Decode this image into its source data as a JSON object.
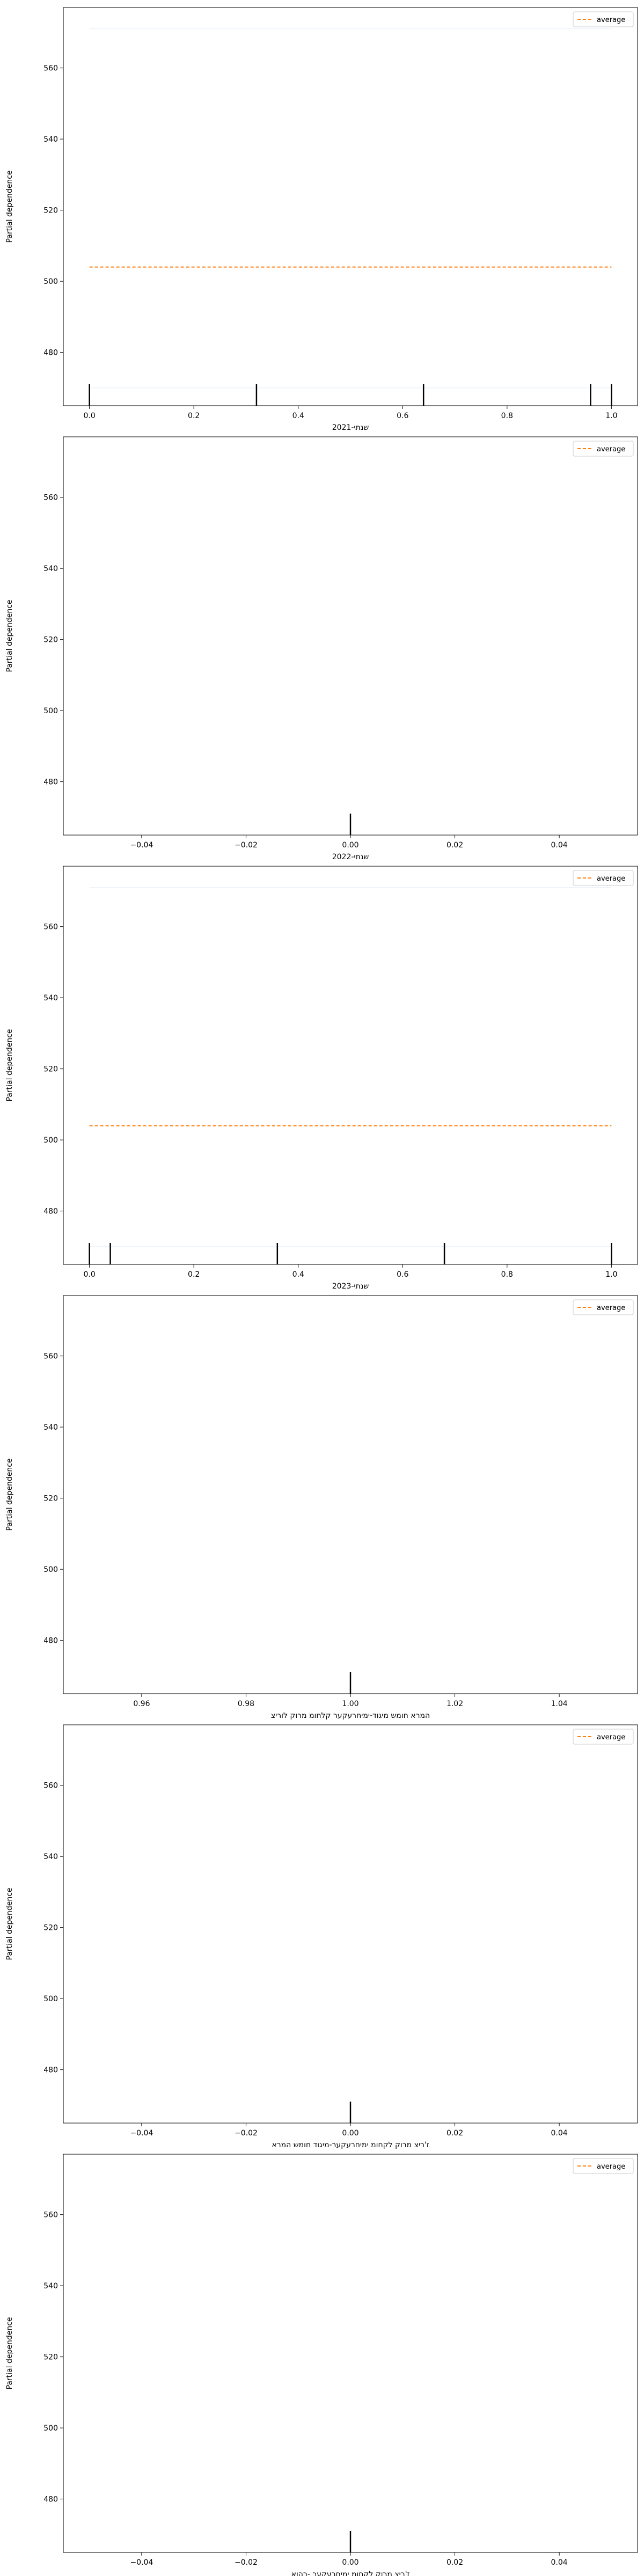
{
  "colors": {
    "average": "#ff7f0e",
    "individual": "#1f77b4",
    "rug": "#000000",
    "axes": "#000000"
  },
  "chart_data": [
    {
      "type": "line",
      "xlabel": "שנתי-2021",
      "ylabel": "Partial dependence",
      "xlim": [
        -0.05,
        1.05
      ],
      "ylim": [
        465,
        577
      ],
      "xticks": [
        0.0,
        0.2,
        0.4,
        0.6,
        0.8,
        1.0
      ],
      "xtick_labels": [
        "0.0",
        "0.2",
        "0.4",
        "0.6",
        "0.8",
        "1.0"
      ],
      "yticks": [
        480,
        500,
        520,
        540,
        560
      ],
      "ytick_labels": [
        "480",
        "500",
        "520",
        "540",
        "560"
      ],
      "legend": {
        "position": "top-right",
        "entries": [
          "average"
        ]
      },
      "series": [
        {
          "name": "average",
          "x": [
            0.0,
            1.0
          ],
          "y": [
            504,
            504
          ]
        }
      ],
      "individual_lines": [
        {
          "x": [
            0.0,
            1.0
          ],
          "y": [
            571,
            571
          ]
        },
        {
          "x": [
            0.0,
            1.0
          ],
          "y": [
            470,
            470
          ]
        }
      ],
      "rug": [
        0.0,
        0.32,
        0.64,
        0.96,
        1.0
      ]
    },
    {
      "type": "line",
      "xlabel": "שנתי-2022",
      "ylabel": "Partial dependence",
      "xlim": [
        -0.055,
        0.055
      ],
      "ylim": [
        465,
        577
      ],
      "xticks": [
        -0.04,
        -0.02,
        0.0,
        0.02,
        0.04
      ],
      "xtick_labels": [
        "−0.04",
        "−0.02",
        "0.00",
        "0.02",
        "0.04"
      ],
      "yticks": [
        480,
        500,
        520,
        540,
        560
      ],
      "ytick_labels": [
        "480",
        "500",
        "520",
        "540",
        "560"
      ],
      "legend": {
        "position": "top-right",
        "entries": [
          "average"
        ]
      },
      "series": [],
      "individual_lines": [],
      "rug": [
        0.0
      ]
    },
    {
      "type": "line",
      "xlabel": "שנתי-2023",
      "ylabel": "Partial dependence",
      "xlim": [
        -0.05,
        1.05
      ],
      "ylim": [
        465,
        577
      ],
      "xticks": [
        0.0,
        0.2,
        0.4,
        0.6,
        0.8,
        1.0
      ],
      "xtick_labels": [
        "0.0",
        "0.2",
        "0.4",
        "0.6",
        "0.8",
        "1.0"
      ],
      "yticks": [
        480,
        500,
        520,
        540,
        560
      ],
      "ytick_labels": [
        "480",
        "500",
        "520",
        "540",
        "560"
      ],
      "legend": {
        "position": "top-right",
        "entries": [
          "average"
        ]
      },
      "series": [
        {
          "name": "average",
          "x": [
            0.0,
            1.0
          ],
          "y": [
            504,
            504
          ]
        }
      ],
      "individual_lines": [
        {
          "x": [
            0.0,
            1.0
          ],
          "y": [
            571,
            571
          ]
        },
        {
          "x": [
            0.0,
            1.0
          ],
          "y": [
            470,
            470
          ]
        }
      ],
      "rug": [
        0.0,
        0.04,
        0.36,
        0.68,
        1.0
      ]
    },
    {
      "type": "line",
      "xlabel": "המרא חומש מיגוד-ימיחרעקער קלחומ מרוק לוריצ",
      "ylabel": "Partial dependence",
      "xlim": [
        0.945,
        1.055
      ],
      "ylim": [
        465,
        577
      ],
      "xticks": [
        0.96,
        0.98,
        1.0,
        1.02,
        1.04
      ],
      "xtick_labels": [
        "0.96",
        "0.98",
        "1.00",
        "1.02",
        "1.04"
      ],
      "yticks": [
        480,
        500,
        520,
        540,
        560
      ],
      "ytick_labels": [
        "480",
        "500",
        "520",
        "540",
        "560"
      ],
      "legend": {
        "position": "top-right",
        "entries": [
          "average"
        ]
      },
      "series": [],
      "individual_lines": [],
      "rug": [
        1.0
      ]
    },
    {
      "type": "line",
      "xlabel": "ז'ריצ מרוק לקחומ ימיחרעקער-מיגוד חומש המרא",
      "ylabel": "Partial dependence",
      "xlim": [
        -0.055,
        0.055
      ],
      "ylim": [
        465,
        577
      ],
      "xticks": [
        -0.04,
        -0.02,
        0.0,
        0.02,
        0.04
      ],
      "xtick_labels": [
        "−0.04",
        "−0.02",
        "0.00",
        "0.02",
        "0.04"
      ],
      "yticks": [
        480,
        500,
        520,
        540,
        560
      ],
      "ytick_labels": [
        "480",
        "500",
        "520",
        "540",
        "560"
      ],
      "legend": {
        "position": "top-right",
        "entries": [
          "average"
        ]
      },
      "series": [],
      "individual_lines": [],
      "rug": [
        0.0
      ]
    },
    {
      "type": "line",
      "xlabel": "ז'ריצ מרוק לקחומ ימיחרעקער -רהוא",
      "ylabel": "Partial dependence",
      "xlim": [
        -0.055,
        0.055
      ],
      "ylim": [
        465,
        577
      ],
      "xticks": [
        -0.04,
        -0.02,
        0.0,
        0.02,
        0.04
      ],
      "xtick_labels": [
        "−0.04",
        "−0.02",
        "0.00",
        "0.02",
        "0.04"
      ],
      "yticks": [
        480,
        500,
        520,
        540,
        560
      ],
      "ytick_labels": [
        "480",
        "500",
        "520",
        "540",
        "560"
      ],
      "legend": {
        "position": "top-right",
        "entries": [
          "average"
        ]
      },
      "series": [],
      "individual_lines": [],
      "rug": [
        0.0
      ]
    }
  ]
}
